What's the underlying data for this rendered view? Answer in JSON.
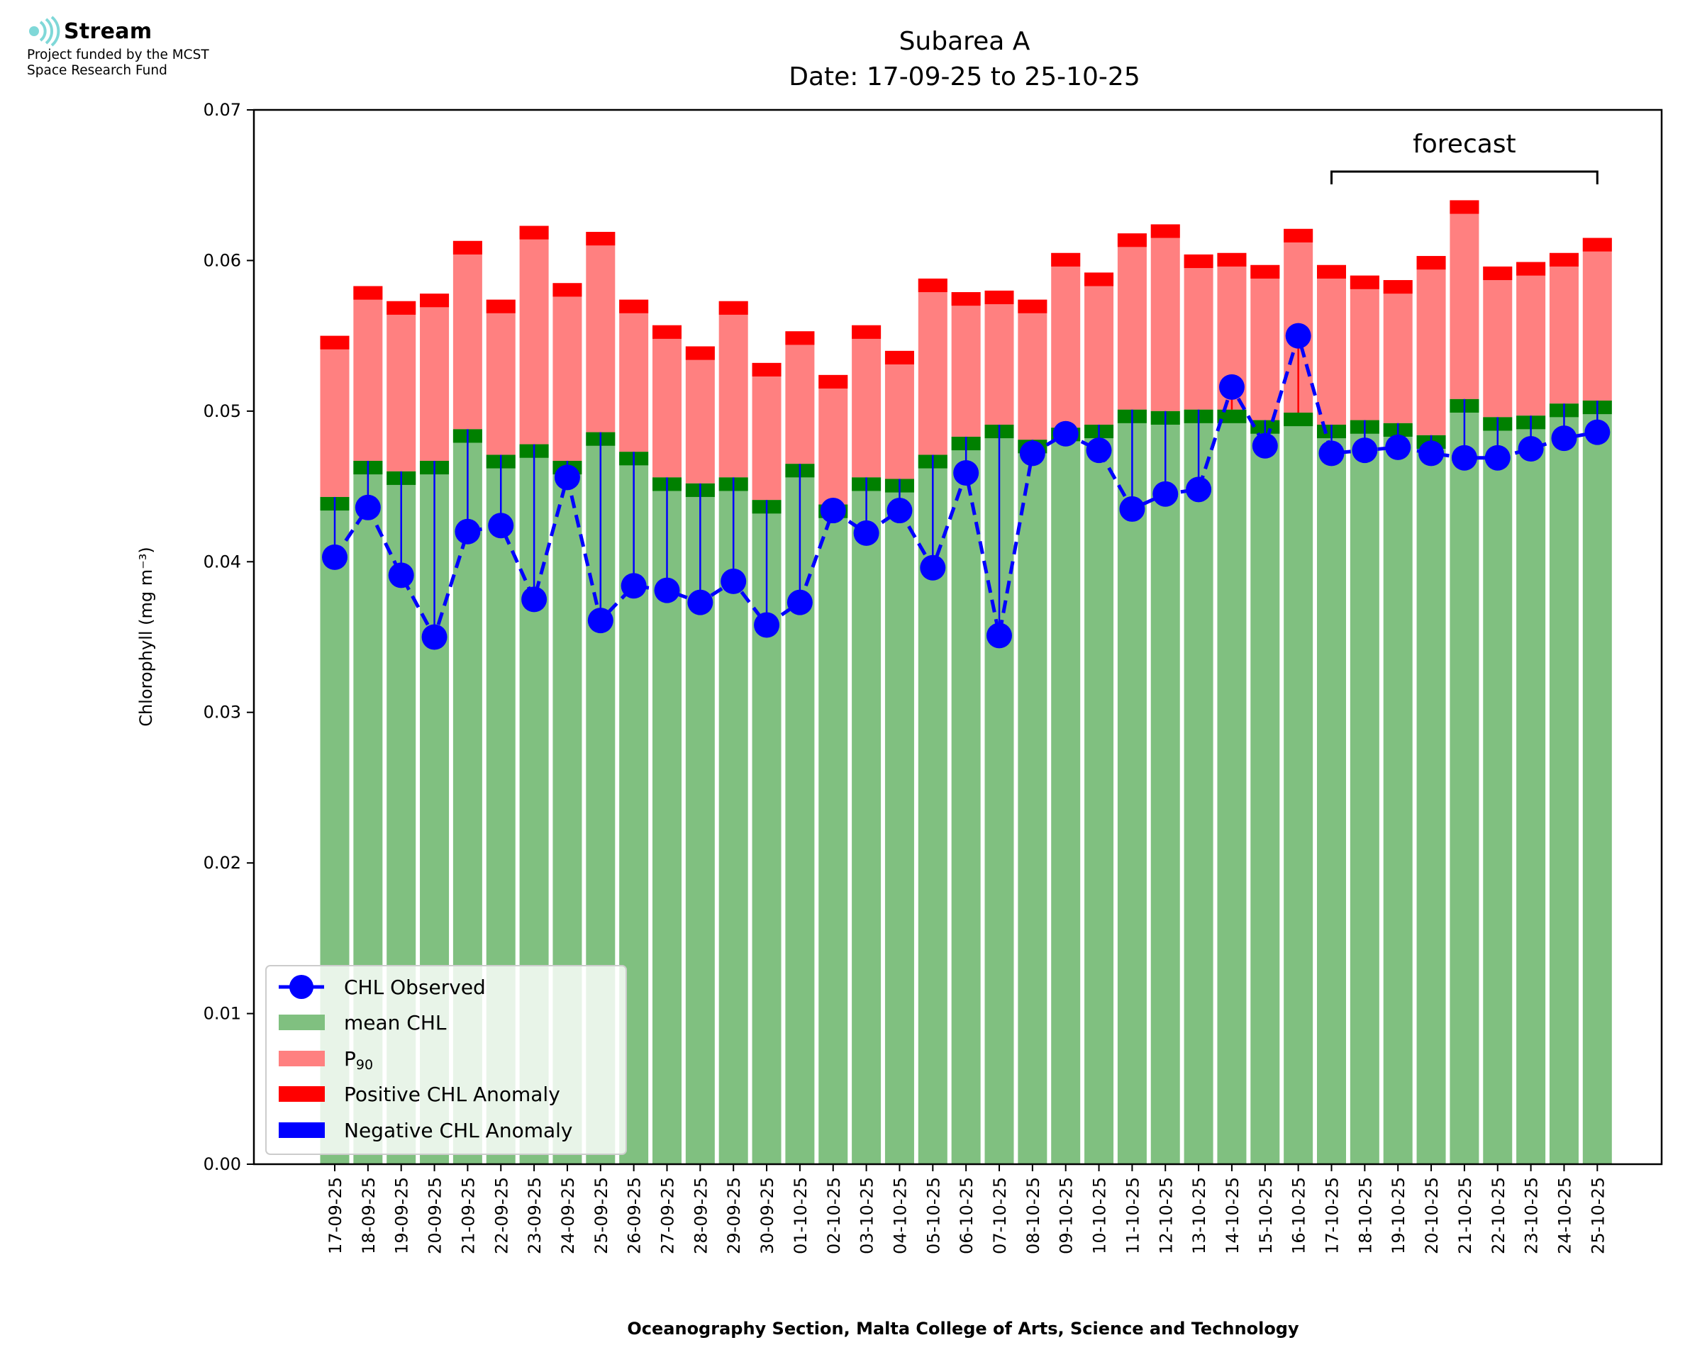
{
  "logo": {
    "name": "Stream",
    "funded_line1": "Project funded by the MCST",
    "funded_line2": "Space Research Fund"
  },
  "colors": {
    "mean": "#80c080",
    "mean_band": "#008000",
    "p90": "#ff8080",
    "p90_band": "#ff0000",
    "observed": "#0000ff",
    "positive_anomaly": "#ff0000",
    "negative_anomaly": "#0000ff",
    "logo_accent": "#7fd8d8"
  },
  "chart_data": {
    "type": "bar",
    "title": "Subarea A",
    "subtitle": "Date: 17-09-25 to 25-10-25",
    "xlabel": "Oceanography Section, Malta College of Arts, Science and Technology",
    "ylabel": "Chlorophyll (mg m⁻³)",
    "ylim": [
      0,
      0.07
    ],
    "yticks": [
      "0.00",
      "0.01",
      "0.02",
      "0.03",
      "0.04",
      "0.05",
      "0.06",
      "0.07"
    ],
    "grid": false,
    "legend_position": "lower-left",
    "categories": [
      "17-09-25",
      "18-09-25",
      "19-09-25",
      "20-09-25",
      "21-09-25",
      "22-09-25",
      "23-09-25",
      "24-09-25",
      "25-09-25",
      "26-09-25",
      "27-09-25",
      "28-09-25",
      "29-09-25",
      "30-09-25",
      "01-10-25",
      "02-10-25",
      "03-10-25",
      "04-10-25",
      "05-10-25",
      "06-10-25",
      "07-10-25",
      "08-10-25",
      "09-10-25",
      "10-10-25",
      "11-10-25",
      "12-10-25",
      "13-10-25",
      "14-10-25",
      "15-10-25",
      "16-10-25",
      "17-10-25",
      "18-10-25",
      "19-10-25",
      "20-10-25",
      "21-10-25",
      "22-10-25",
      "23-10-25",
      "24-10-25",
      "25-10-25"
    ],
    "series": [
      {
        "name": "CHL Observed",
        "values": [
          0.0403,
          0.0436,
          0.0391,
          0.035,
          0.042,
          0.0424,
          0.0375,
          0.0456,
          0.0361,
          0.0384,
          0.0381,
          0.0373,
          0.0387,
          0.0358,
          0.0373,
          0.0434,
          0.0419,
          0.0434,
          0.0396,
          0.0459,
          0.0351,
          0.0472,
          0.0485,
          0.0474,
          0.0435,
          0.0445,
          0.0448,
          0.0516,
          0.0477,
          0.055,
          0.0472,
          0.0474,
          0.0476,
          0.0472,
          0.0469,
          0.0469,
          0.0475,
          0.0482,
          0.0486
        ]
      },
      {
        "name": "mean CHL",
        "values": [
          0.0443,
          0.0467,
          0.046,
          0.0467,
          0.0488,
          0.0471,
          0.0478,
          0.0467,
          0.0486,
          0.0473,
          0.0456,
          0.0452,
          0.0456,
          0.0441,
          0.0465,
          0.0438,
          0.0456,
          0.0455,
          0.0471,
          0.0483,
          0.0491,
          0.0481,
          0.0489,
          0.0491,
          0.0501,
          0.05,
          0.0501,
          0.0501,
          0.0494,
          0.0499,
          0.0491,
          0.0494,
          0.0492,
          0.0484,
          0.0508,
          0.0496,
          0.0497,
          0.0505,
          0.0507
        ]
      },
      {
        "name": "P₉₀",
        "values": [
          0.055,
          0.0583,
          0.0573,
          0.0578,
          0.0613,
          0.0574,
          0.0623,
          0.0585,
          0.0619,
          0.0574,
          0.0557,
          0.0543,
          0.0573,
          0.0532,
          0.0553,
          0.0524,
          0.0557,
          0.054,
          0.0588,
          0.0579,
          0.058,
          0.0574,
          0.0605,
          0.0592,
          0.0618,
          0.0624,
          0.0604,
          0.0605,
          0.0597,
          0.0621,
          0.0597,
          0.059,
          0.0587,
          0.0603,
          0.064,
          0.0596,
          0.0599,
          0.0605,
          0.0615
        ]
      }
    ],
    "forecast": {
      "label": "forecast",
      "from": "17-10-25",
      "to": "25-10-25"
    },
    "legend": [
      {
        "key": "observed",
        "label": "CHL Observed"
      },
      {
        "key": "mean",
        "label": "mean CHL"
      },
      {
        "key": "p90",
        "label_base": "P",
        "label_sub": "90"
      },
      {
        "key": "positive",
        "label": "Positive CHL Anomaly"
      },
      {
        "key": "negative",
        "label": "Negative CHL Anomaly"
      }
    ]
  }
}
